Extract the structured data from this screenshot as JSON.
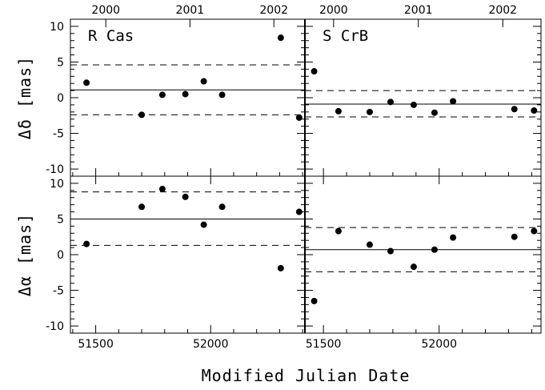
{
  "figure": {
    "xlabel": "Modified Julian Date",
    "ylabel_top": "Δδ [mas]",
    "ylabel_bottom": "Δα [mas]",
    "year_labels": [
      "2000",
      "2001",
      "2002"
    ]
  },
  "chart_data": [
    {
      "type": "scatter",
      "panel": "top-left",
      "title": "R Cas",
      "ylabel": "Δδ [mas]",
      "xlim": [
        51390,
        52410
      ],
      "ylim": [
        -11,
        11
      ],
      "x_ticks": [
        51500,
        52000
      ],
      "y_ticks": [
        -10,
        -5,
        0,
        5,
        10
      ],
      "year_ticks": [
        {
          "label": "2000",
          "mjd": 51544
        },
        {
          "label": "2001",
          "mjd": 51910
        },
        {
          "label": "2002",
          "mjd": 52275
        }
      ],
      "mean": 1.1,
      "band": [
        -2.4,
        4.6
      ],
      "x": [
        51460,
        51700,
        51790,
        51890,
        51970,
        52050,
        52305,
        52385
      ],
      "y": [
        2.1,
        -2.4,
        0.4,
        0.5,
        2.3,
        0.4,
        8.4,
        -2.8
      ]
    },
    {
      "type": "scatter",
      "panel": "top-right",
      "title": "S CrB",
      "ylabel": "Δδ [mas]",
      "xlim": [
        51420,
        52440
      ],
      "ylim": [
        -11,
        11
      ],
      "x_ticks": [
        51500,
        52000
      ],
      "y_ticks": [
        -10,
        -5,
        0,
        5,
        10
      ],
      "year_ticks": [
        {
          "label": "2000",
          "mjd": 51544
        },
        {
          "label": "2001",
          "mjd": 51910
        },
        {
          "label": "2002",
          "mjd": 52275
        }
      ],
      "mean": -0.9,
      "band": [
        -2.7,
        1.0
      ],
      "x": [
        51460,
        51565,
        51700,
        51790,
        51890,
        51980,
        52060,
        52325,
        52410
      ],
      "y": [
        3.7,
        -1.9,
        -2.0,
        -0.6,
        -1.0,
        -2.1,
        -0.5,
        -1.6,
        -1.8
      ]
    },
    {
      "type": "scatter",
      "panel": "bottom-left",
      "ylabel": "Δα [mas]",
      "xlabel": "Modified Julian Date",
      "xlim": [
        51390,
        52410
      ],
      "ylim": [
        -11,
        11
      ],
      "x_ticks": [
        51500,
        52000
      ],
      "y_ticks": [
        -10,
        -5,
        0,
        5,
        10
      ],
      "mean": 5.0,
      "band": [
        1.3,
        8.8
      ],
      "x": [
        51460,
        51700,
        51790,
        51890,
        51970,
        52050,
        52305,
        52385
      ],
      "y": [
        1.5,
        6.7,
        9.2,
        8.1,
        4.2,
        6.7,
        -1.9,
        6.0
      ]
    },
    {
      "type": "scatter",
      "panel": "bottom-right",
      "xlabel": "Modified Julian Date",
      "xlim": [
        51420,
        52440
      ],
      "ylim": [
        -11,
        11
      ],
      "x_ticks": [
        51500,
        52000
      ],
      "y_ticks": [
        -10,
        -5,
        0,
        5,
        10
      ],
      "mean": 0.7,
      "band": [
        -2.4,
        3.8
      ],
      "x": [
        51460,
        51565,
        51700,
        51790,
        51890,
        51980,
        52060,
        52325,
        52410
      ],
      "y": [
        -6.5,
        3.3,
        1.4,
        0.5,
        -1.7,
        0.7,
        2.4,
        2.5,
        3.3
      ]
    }
  ]
}
